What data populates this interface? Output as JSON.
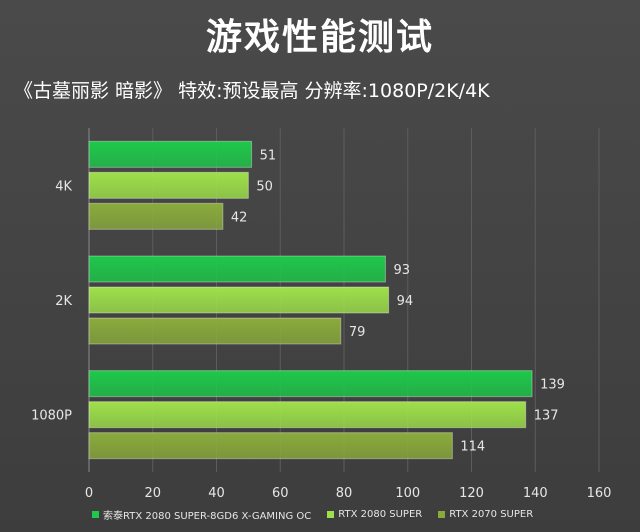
{
  "title": "游戏性能测试",
  "subtitle": "《古墓丽影 暗影》  特效:预设最高  分辨率:1080P/2K/4K",
  "chart_data": {
    "type": "bar",
    "orientation": "horizontal",
    "categories": [
      "4K",
      "2K",
      "1080P"
    ],
    "series": [
      {
        "name": "索泰RTX 2080 SUPER-8GD6 X-GAMING OC",
        "values": [
          51,
          93,
          139
        ],
        "color": "#1ec84a"
      },
      {
        "name": "RTX 2080 SUPER",
        "values": [
          50,
          94,
          137
        ],
        "color": "#9ee04a"
      },
      {
        "name": "RTX 2070 SUPER",
        "values": [
          42,
          79,
          114
        ],
        "color": "#8aab3c"
      }
    ],
    "xlim": [
      0,
      160
    ],
    "xticks": [
      0,
      20,
      40,
      60,
      80,
      100,
      120,
      140,
      160
    ],
    "grid": true,
    "legend": "bottom"
  }
}
